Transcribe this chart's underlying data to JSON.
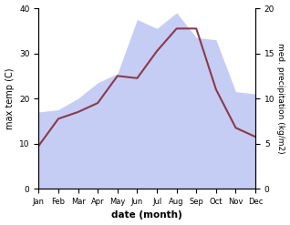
{
  "months": [
    "Jan",
    "Feb",
    "Mar",
    "Apr",
    "May",
    "Jun",
    "Jul",
    "Aug",
    "Sep",
    "Oct",
    "Nov",
    "Dec"
  ],
  "max_temp": [
    9.5,
    15.5,
    17.0,
    19.0,
    25.0,
    24.5,
    30.5,
    35.5,
    35.5,
    22.0,
    13.5,
    11.5
  ],
  "precipitation_left": [
    17.0,
    17.5,
    20.0,
    23.5,
    25.5,
    37.5,
    35.5,
    39.0,
    33.5,
    33.0,
    21.5,
    21.0
  ],
  "temp_color": "#8B3A4A",
  "precip_fill_color": "#c5cdf5",
  "ylabel_left": "max temp (C)",
  "ylabel_right": "med. precipitation (kg/m2)",
  "xlabel": "date (month)",
  "ylim_left": [
    0,
    40
  ],
  "ylim_right": [
    0,
    20
  ],
  "yticks_left": [
    0,
    10,
    20,
    30,
    40
  ],
  "yticks_right": [
    0,
    5,
    10,
    15,
    20
  ],
  "bg_color": "#ffffff"
}
